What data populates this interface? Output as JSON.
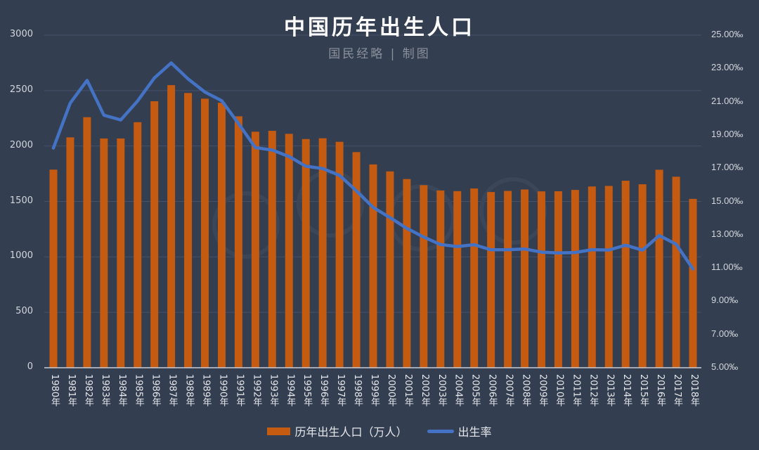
{
  "header": {
    "title": "中国历年出生人口",
    "subtitle": "国民经略 | 制图"
  },
  "legend": {
    "bar_label": "历年出生人口（万人）",
    "line_label": "出生率"
  },
  "colors": {
    "background": "#333e50",
    "bar": "#c55a11",
    "line": "#4472c4",
    "grid": "#46516a",
    "axis": "#c9ccd2"
  },
  "chart_data": {
    "type": "bar+line",
    "title": "中国历年出生人口",
    "subtitle": "国民经略 | 制图",
    "categories": [
      "1980年",
      "1981年",
      "1982年",
      "1983年",
      "1984年",
      "1985年",
      "1986年",
      "1987年",
      "1988年",
      "1989年",
      "1990年",
      "1991年",
      "1992年",
      "1993年",
      "1994年",
      "1995年",
      "1996年",
      "1997年",
      "1998年",
      "1999年",
      "2000年",
      "2001年",
      "2002年",
      "2003年",
      "2004年",
      "2005年",
      "2006年",
      "2007年",
      "2008年",
      "2009年",
      "2010年",
      "2011年",
      "2012年",
      "2013年",
      "2014年",
      "2015年",
      "2016年",
      "2017年",
      "2018年"
    ],
    "series": [
      {
        "name": "历年出生人口（万人）",
        "type": "bar",
        "axis": "left",
        "values": [
          1787,
          2078,
          2260,
          2068,
          2068,
          2215,
          2404,
          2549,
          2478,
          2427,
          2390,
          2268,
          2129,
          2137,
          2110,
          2063,
          2070,
          2038,
          1945,
          1834,
          1771,
          1702,
          1647,
          1599,
          1593,
          1617,
          1585,
          1595,
          1608,
          1591,
          1592,
          1604,
          1635,
          1640,
          1687,
          1655,
          1786,
          1723,
          1523
        ]
      },
      {
        "name": "出生率",
        "type": "line",
        "axis": "right",
        "unit": "‰",
        "values": [
          18.21,
          20.91,
          22.28,
          20.19,
          19.9,
          21.04,
          22.43,
          23.33,
          22.37,
          21.58,
          21.06,
          19.68,
          18.24,
          18.09,
          17.7,
          17.12,
          16.98,
          16.57,
          15.64,
          14.64,
          14.03,
          13.38,
          12.86,
          12.41,
          12.29,
          12.4,
          12.09,
          12.1,
          12.14,
          11.95,
          11.9,
          11.93,
          12.1,
          12.08,
          12.37,
          12.07,
          12.95,
          12.43,
          10.94
        ]
      }
    ],
    "left_axis": {
      "ticks": [
        "3000",
        "2500",
        "2000",
        "1500",
        "1000",
        "500",
        "0"
      ],
      "range": [
        0,
        3000
      ]
    },
    "right_axis": {
      "ticks": [
        "25.00‰",
        "23.00‰",
        "21.00‰",
        "19.00‰",
        "17.00‰",
        "15.00‰",
        "13.00‰",
        "11.00‰",
        "9.00‰",
        "7.00‰",
        "5.00‰"
      ],
      "range": [
        5,
        25
      ]
    },
    "xlabel": "",
    "ylabel": "",
    "grid": true,
    "legend_position": "bottom"
  }
}
